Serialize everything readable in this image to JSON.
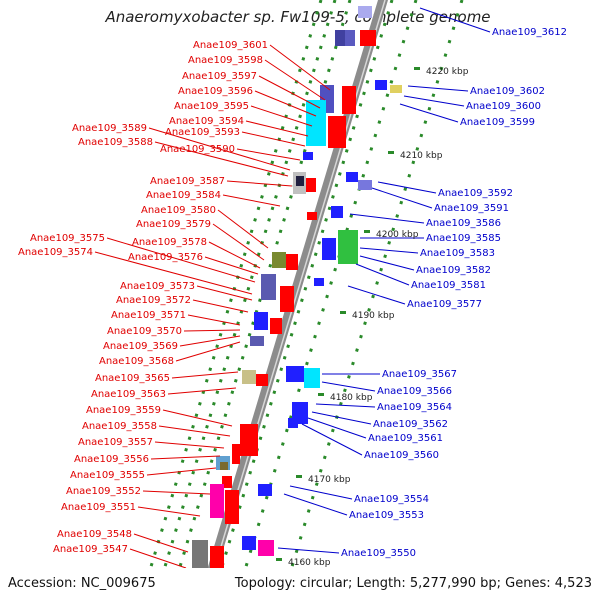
{
  "title": "Anaeromyxobacter sp. Fw109-5, complete genome",
  "accession": "Accession: NC_009675",
  "topology": "Topology: circular; Length: 5,277,990 bp; Genes: 4,523",
  "colors": {
    "forward_label": "#e00000",
    "reverse_label": "#0000cc",
    "backbone": "#8c8c8c",
    "tick_marks": "#2a8a2a"
  },
  "ticks": [
    {
      "label": "4220 kbp"
    },
    {
      "label": "4210 kbp"
    },
    {
      "label": "4200 kbp"
    },
    {
      "label": "4190 kbp"
    },
    {
      "label": "4180 kbp"
    },
    {
      "label": "4170 kbp"
    },
    {
      "label": "4160 kbp"
    }
  ],
  "forward_genes": [
    "Anae109_3601",
    "Anae109_3598",
    "Anae109_3597",
    "Anae109_3596",
    "Anae109_3595",
    "Anae109_3594",
    "Anae109_3593",
    "Anae109_3589",
    "Anae109_3588",
    "Anae109_3590",
    "Anae109_3587",
    "Anae109_3584",
    "Anae109_3580",
    "Anae109_3579",
    "Anae109_3575",
    "Anae109_3578",
    "Anae109_3574",
    "Anae109_3576",
    "Anae109_3573",
    "Anae109_3572",
    "Anae109_3571",
    "Anae109_3570",
    "Anae109_3569",
    "Anae109_3568",
    "Anae109_3565",
    "Anae109_3563",
    "Anae109_3559",
    "Anae109_3558",
    "Anae109_3557",
    "Anae109_3556",
    "Anae109_3555",
    "Anae109_3552",
    "Anae109_3551",
    "Anae109_3548",
    "Anae109_3547"
  ],
  "reverse_genes": [
    "Anae109_3612",
    "Anae109_3602",
    "Anae109_3600",
    "Anae109_3599",
    "Anae109_3592",
    "Anae109_3591",
    "Anae109_3586",
    "Anae109_3585",
    "Anae109_3583",
    "Anae109_3582",
    "Anae109_3581",
    "Anae109_3577",
    "Anae109_3567",
    "Anae109_3566",
    "Anae109_3564",
    "Anae109_3562",
    "Anae109_3561",
    "Anae109_3560",
    "Anae109_3554",
    "Anae109_3553",
    "Anae109_3550"
  ]
}
